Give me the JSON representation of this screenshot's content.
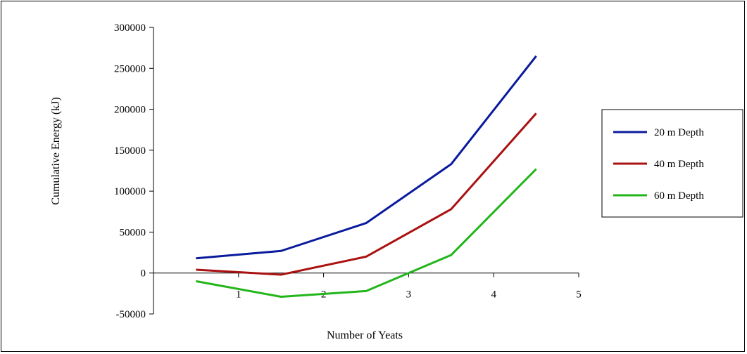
{
  "chart_data": {
    "type": "line",
    "xlabel": "Number of Yeats",
    "ylabel": "Cumulative Energy (kJ)",
    "xlim": [
      0,
      5
    ],
    "ylim": [
      -50000,
      300000
    ],
    "x_ticks": [
      "1",
      "2",
      "3",
      "4",
      "5"
    ],
    "y_ticks": [
      "300000",
      "250000",
      "200000",
      "150000",
      "100000",
      "50000",
      "0",
      "-50000"
    ],
    "x": [
      0.5,
      1.5,
      2.5,
      3.5,
      4.5
    ],
    "series": [
      {
        "name": "20 m Depth",
        "color": "#0a1a9c",
        "values": [
          18000,
          27000,
          61000,
          133000,
          265000
        ]
      },
      {
        "name": "40 m Depth",
        "color": "#aa1111",
        "values": [
          4000,
          -2000,
          20000,
          78000,
          195000
        ]
      },
      {
        "name": "60 m Depth",
        "color": "#22b61a",
        "values": [
          -10000,
          -29000,
          -22000,
          22000,
          127000
        ]
      }
    ],
    "grid": false,
    "legend_position": "right"
  }
}
